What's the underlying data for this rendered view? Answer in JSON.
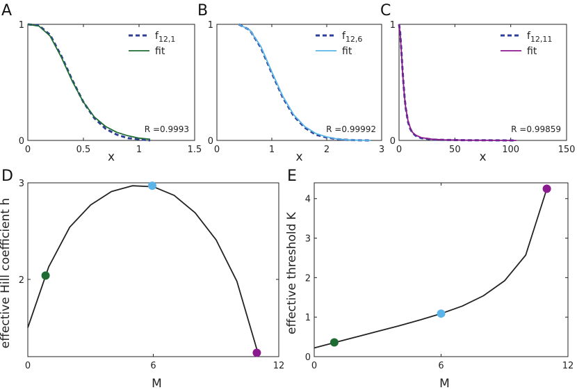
{
  "chart_data": [
    {
      "panel": "A",
      "type": "line",
      "xlabel": "x",
      "xlim": [
        0,
        1.5
      ],
      "ylim": [
        0,
        1
      ],
      "xticks": [
        "0",
        "0.5",
        "1",
        "1.5"
      ],
      "yticks": [
        "0",
        "1"
      ],
      "legend": "top-right",
      "r_text": "R =0.9993",
      "series": [
        {
          "name": "f12,1",
          "name_main": "f",
          "name_sub": "12,1",
          "style": "dashed",
          "color": "#2e3f99",
          "x": [
            0,
            0.1,
            0.2,
            0.3,
            0.4,
            0.5,
            0.6,
            0.7,
            0.8,
            0.9,
            1.0,
            1.1
          ],
          "y": [
            1.0,
            0.99,
            0.91,
            0.73,
            0.52,
            0.33,
            0.19,
            0.1,
            0.05,
            0.02,
            0.01,
            0.0
          ]
        },
        {
          "name": "fit",
          "style": "solid",
          "color": "#1f6b34",
          "x": [
            0,
            0.1,
            0.2,
            0.3,
            0.4,
            0.5,
            0.6,
            0.7,
            0.8,
            0.9,
            1.0,
            1.1
          ],
          "y": [
            1.0,
            0.985,
            0.9,
            0.72,
            0.51,
            0.33,
            0.2,
            0.12,
            0.07,
            0.04,
            0.02,
            0.01
          ]
        }
      ]
    },
    {
      "panel": "B",
      "type": "line",
      "xlabel": "x",
      "xlim": [
        0,
        3
      ],
      "ylim": [
        0,
        1
      ],
      "xticks": [
        "0",
        "1",
        "2",
        "3"
      ],
      "yticks": [
        "0",
        "1"
      ],
      "legend": "top-right",
      "r_text": "R =0.99992",
      "series": [
        {
          "name": "f12,6",
          "name_main": "f",
          "name_sub": "12,6",
          "style": "dashed",
          "color": "#2e3f99",
          "x": [
            0.4,
            0.6,
            0.8,
            1.0,
            1.2,
            1.4,
            1.6,
            1.8,
            2.0,
            2.2,
            2.4,
            2.6,
            2.8
          ],
          "y": [
            1.0,
            0.95,
            0.8,
            0.58,
            0.37,
            0.21,
            0.11,
            0.05,
            0.025,
            0.01,
            0.004,
            0.001,
            0.0
          ]
        },
        {
          "name": "fit",
          "style": "solid",
          "color": "#5ab4e8",
          "x": [
            0.4,
            0.6,
            0.8,
            1.0,
            1.2,
            1.4,
            1.6,
            1.8,
            2.0,
            2.2,
            2.4,
            2.6,
            2.8
          ],
          "y": [
            1.0,
            0.95,
            0.81,
            0.59,
            0.38,
            0.22,
            0.12,
            0.06,
            0.03,
            0.012,
            0.005,
            0.002,
            0.0
          ]
        }
      ]
    },
    {
      "panel": "C",
      "type": "line",
      "xlabel": "x",
      "xlim": [
        0,
        150
      ],
      "ylim": [
        0,
        1
      ],
      "xticks": [
        "0",
        "50",
        "100",
        "150"
      ],
      "yticks": [
        "0",
        "1"
      ],
      "legend": "top-right",
      "r_text": "R =0.99859",
      "series": [
        {
          "name": "f12,11",
          "name_main": "f",
          "name_sub": "12,11",
          "style": "dashed",
          "color": "#2e3f99",
          "x": [
            0,
            1,
            2,
            3,
            4,
            5,
            6,
            8,
            10,
            12,
            15,
            20,
            30,
            40,
            60,
            80,
            100,
            105
          ],
          "y": [
            1.0,
            0.93,
            0.79,
            0.63,
            0.49,
            0.37,
            0.28,
            0.16,
            0.1,
            0.065,
            0.04,
            0.02,
            0.008,
            0.004,
            0.002,
            0.001,
            0.0,
            0.0
          ]
        },
        {
          "name": "fit",
          "style": "solid",
          "color": "#8b1a8f",
          "x": [
            0,
            1,
            2,
            3,
            4,
            5,
            6,
            8,
            10,
            12,
            15,
            20,
            30,
            40,
            60,
            80,
            100,
            105
          ],
          "y": [
            1.0,
            0.92,
            0.78,
            0.62,
            0.48,
            0.37,
            0.28,
            0.17,
            0.11,
            0.07,
            0.045,
            0.024,
            0.01,
            0.005,
            0.002,
            0.001,
            0.0,
            0.0
          ]
        }
      ]
    },
    {
      "panel": "D",
      "type": "line",
      "xlabel": "M",
      "ylabel": "effective Hill coefficient h",
      "xlim": [
        0,
        12
      ],
      "ylim": [
        1.2,
        3.0
      ],
      "xticks": [
        "0",
        "6",
        "12"
      ],
      "xtick_values": [
        0,
        6,
        12
      ],
      "yticks": [
        "2",
        "3"
      ],
      "ytick_values": [
        2,
        3
      ],
      "series": [
        {
          "name": "",
          "style": "solid",
          "color": "#222222",
          "x": [
            0,
            1,
            2,
            3,
            4,
            5,
            6,
            7,
            8,
            9,
            10,
            11
          ],
          "y": [
            1.5,
            2.13,
            2.54,
            2.77,
            2.91,
            2.97,
            2.96,
            2.87,
            2.69,
            2.41,
            1.98,
            1.24
          ]
        }
      ],
      "markers": [
        {
          "x": 0.85,
          "y": 2.04,
          "color": "#1f6b34"
        },
        {
          "x": 5.95,
          "y": 2.97,
          "color": "#5ab4e8"
        },
        {
          "x": 10.95,
          "y": 1.24,
          "color": "#8b1a8f"
        }
      ]
    },
    {
      "panel": "E",
      "type": "line",
      "xlabel": "M",
      "ylabel": "effective threshold K",
      "xlim": [
        0,
        12
      ],
      "ylim": [
        0,
        4.4
      ],
      "xticks": [
        "0",
        "6",
        "12"
      ],
      "xtick_values": [
        0,
        6,
        12
      ],
      "yticks": [
        "0",
        "1",
        "2",
        "3",
        "4"
      ],
      "ytick_values": [
        0,
        1,
        2,
        3,
        4
      ],
      "series": [
        {
          "name": "",
          "style": "solid",
          "color": "#222222",
          "x": [
            0,
            1,
            2,
            3,
            4,
            5,
            6,
            7,
            8,
            9,
            10,
            11
          ],
          "y": [
            0.22,
            0.36,
            0.5,
            0.64,
            0.78,
            0.93,
            1.09,
            1.28,
            1.54,
            1.92,
            2.57,
            4.25
          ]
        }
      ],
      "markers": [
        {
          "x": 0.95,
          "y": 0.36,
          "color": "#1f6b34"
        },
        {
          "x": 6.0,
          "y": 1.09,
          "color": "#5ab4e8"
        },
        {
          "x": 11.0,
          "y": 4.25,
          "color": "#8b1a8f"
        }
      ]
    }
  ]
}
